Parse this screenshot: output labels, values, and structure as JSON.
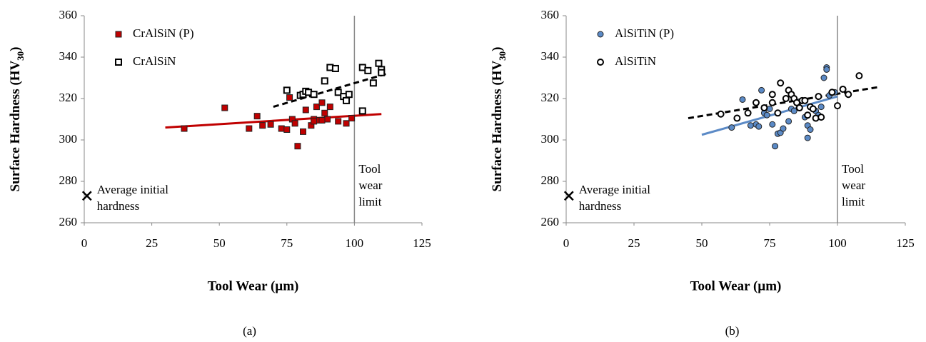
{
  "chart_data": [
    {
      "type": "scatter",
      "caption": "(a)",
      "y_label": [
        "Surface Hardness (HV",
        "30",
        ")"
      ],
      "x_label": "Tool Wear (µm)",
      "xlim": [
        0,
        125
      ],
      "xticks": [
        0,
        25,
        50,
        75,
        100,
        125
      ],
      "ylim": [
        260,
        360
      ],
      "yticks": [
        260,
        280,
        300,
        320,
        340,
        360
      ],
      "series": [
        {
          "name": "CrAlSiN (P)",
          "color": "#c00000",
          "marker": "square",
          "filled": true,
          "x": [
            37,
            52,
            61,
            64,
            66,
            69,
            73,
            75,
            76,
            77,
            78,
            79,
            81,
            82,
            84,
            85,
            86,
            87,
            88,
            89,
            90,
            91,
            94,
            97,
            99,
            85,
            88
          ],
          "values": [
            305.5,
            315.5,
            305.5,
            311.5,
            307,
            307.5,
            305.5,
            305,
            320.5,
            310,
            308,
            297,
            304,
            314.5,
            307,
            310,
            316,
            309.5,
            318,
            313,
            310,
            316,
            309,
            308,
            310.5,
            309,
            309.5
          ]
        },
        {
          "name": "CrAlSiN",
          "color": "#000000",
          "marker": "square",
          "filled": false,
          "x": [
            75,
            80,
            81,
            82,
            83,
            85,
            89,
            91,
            93,
            94,
            96,
            97,
            98,
            103,
            103,
            105,
            107,
            109,
            110,
            110
          ],
          "values": [
            324,
            321.5,
            322,
            323.5,
            323,
            322,
            328.5,
            335,
            334.5,
            323,
            321,
            319,
            322,
            314,
            335,
            333.5,
            327.5,
            337,
            334,
            332.5
          ]
        }
      ],
      "trend_lines": [
        {
          "color": "#c00000",
          "dashed": false,
          "x": [
            30,
            110
          ],
          "y": [
            306,
            312.5
          ]
        },
        {
          "color": "#000000",
          "dashed": true,
          "x": [
            70,
            112
          ],
          "y": [
            316,
            332
          ]
        }
      ],
      "annotations": [
        {
          "text": [
            "Average initial",
            "hardness"
          ],
          "marker": "x",
          "x": 1,
          "y": 273
        },
        {
          "text": [
            "Tool",
            "wear",
            "limit"
          ],
          "vline": true,
          "x": 100
        }
      ]
    },
    {
      "type": "scatter",
      "caption": "(b)",
      "y_label": [
        "Surface Hardness (HV",
        "30",
        ")"
      ],
      "x_label": "Tool Wear (µm)",
      "xlim": [
        0,
        125
      ],
      "xticks": [
        0,
        25,
        50,
        75,
        100,
        125
      ],
      "ylim": [
        260,
        360
      ],
      "yticks": [
        260,
        280,
        300,
        320,
        340,
        360
      ],
      "series": [
        {
          "name": "AlSiTiN (P)",
          "color": "#5b8ac6",
          "marker": "circle",
          "filled": true,
          "x": [
            61,
            65,
            68,
            70,
            71,
            72,
            73,
            74,
            75,
            76,
            77,
            78,
            79,
            80,
            82,
            83,
            84,
            86,
            88,
            89,
            89,
            90,
            92,
            93,
            94,
            95,
            96,
            96,
            97,
            99
          ],
          "values": [
            306,
            319.5,
            307,
            307.5,
            306.5,
            324,
            313,
            312,
            315,
            307.5,
            297,
            303,
            303.5,
            305.5,
            309,
            315,
            314,
            318.5,
            311,
            301,
            307,
            305,
            314,
            312,
            316,
            330,
            335,
            334,
            321.5,
            323
          ]
        },
        {
          "name": "AlSiTiN",
          "color": "#000000",
          "marker": "circle",
          "filled": false,
          "x": [
            57,
            63,
            67,
            70,
            73,
            76,
            76,
            78,
            79,
            81,
            82,
            83,
            84,
            85,
            86,
            87,
            88,
            89,
            90,
            91,
            92,
            93,
            94,
            98,
            100,
            102,
            104,
            108
          ],
          "values": [
            312.5,
            310.5,
            313,
            318,
            315.5,
            322,
            318,
            313,
            327.5,
            320,
            324,
            322,
            320,
            318,
            315.5,
            319,
            319,
            312,
            316,
            315,
            310.5,
            321,
            311,
            323,
            316.5,
            324.5,
            322,
            331
          ]
        }
      ],
      "trend_lines": [
        {
          "color": "#5b8ac6",
          "dashed": false,
          "x": [
            50,
            100
          ],
          "y": [
            302.5,
            321
          ]
        },
        {
          "color": "#000000",
          "dashed": true,
          "x": [
            45,
            115
          ],
          "y": [
            310.5,
            325.5
          ]
        }
      ],
      "annotations": [
        {
          "text": [
            "Average initial",
            "hardness"
          ],
          "marker": "x",
          "x": 1,
          "y": 273
        },
        {
          "text": [
            "Tool",
            "wear",
            "limit"
          ],
          "vline": true,
          "x": 100
        }
      ]
    }
  ]
}
